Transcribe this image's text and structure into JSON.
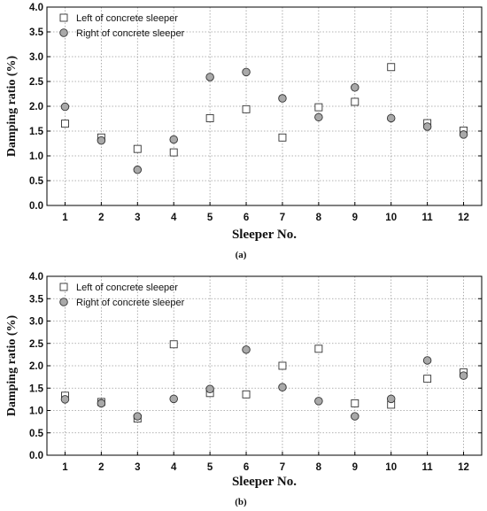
{
  "chart_data": [
    {
      "type": "scatter",
      "panel_label": "(a)",
      "xlabel": "Sleeper No.",
      "ylabel": "Damping ratio (%)",
      "x": [
        1,
        2,
        3,
        4,
        5,
        6,
        7,
        8,
        9,
        10,
        11,
        12
      ],
      "xlim": [
        0.5,
        12.5
      ],
      "ylim": [
        0.0,
        4.0
      ],
      "yticks": [
        "0.0",
        "0.5",
        "1.0",
        "1.5",
        "2.0",
        "2.5",
        "3.0",
        "3.5",
        "4.0"
      ],
      "grid": true,
      "legend_position": "top-left",
      "series": [
        {
          "name": "Left of concrete sleeper",
          "marker": "square",
          "values": [
            1.65,
            1.37,
            1.14,
            1.07,
            1.76,
            1.94,
            1.37,
            1.98,
            2.09,
            2.79,
            1.66,
            1.51
          ]
        },
        {
          "name": "Right of concrete sleeper",
          "marker": "circle",
          "values": [
            1.99,
            1.31,
            0.72,
            1.33,
            2.59,
            2.69,
            2.16,
            1.78,
            2.38,
            1.76,
            1.59,
            1.43
          ]
        }
      ]
    },
    {
      "type": "scatter",
      "panel_label": "(b)",
      "xlabel": "Sleeper No.",
      "ylabel": "Damping ratio (%)",
      "x": [
        1,
        2,
        3,
        4,
        5,
        6,
        7,
        8,
        9,
        10,
        11,
        12
      ],
      "xlim": [
        0.5,
        12.5
      ],
      "ylim": [
        0.0,
        4.0
      ],
      "yticks": [
        "0.0",
        "0.5",
        "1.0",
        "1.5",
        "2.0",
        "2.5",
        "3.0",
        "3.5",
        "4.0"
      ],
      "grid": true,
      "legend_position": "top-left",
      "series": [
        {
          "name": "Left of concrete sleeper",
          "marker": "square",
          "values": [
            1.33,
            1.19,
            0.82,
            2.48,
            1.39,
            1.36,
            2.0,
            2.38,
            1.16,
            1.13,
            1.71,
            1.85
          ]
        },
        {
          "name": "Right of concrete sleeper",
          "marker": "circle",
          "values": [
            1.25,
            1.16,
            0.87,
            1.26,
            1.48,
            2.36,
            1.52,
            1.21,
            0.87,
            1.26,
            2.12,
            1.78
          ]
        }
      ]
    }
  ]
}
